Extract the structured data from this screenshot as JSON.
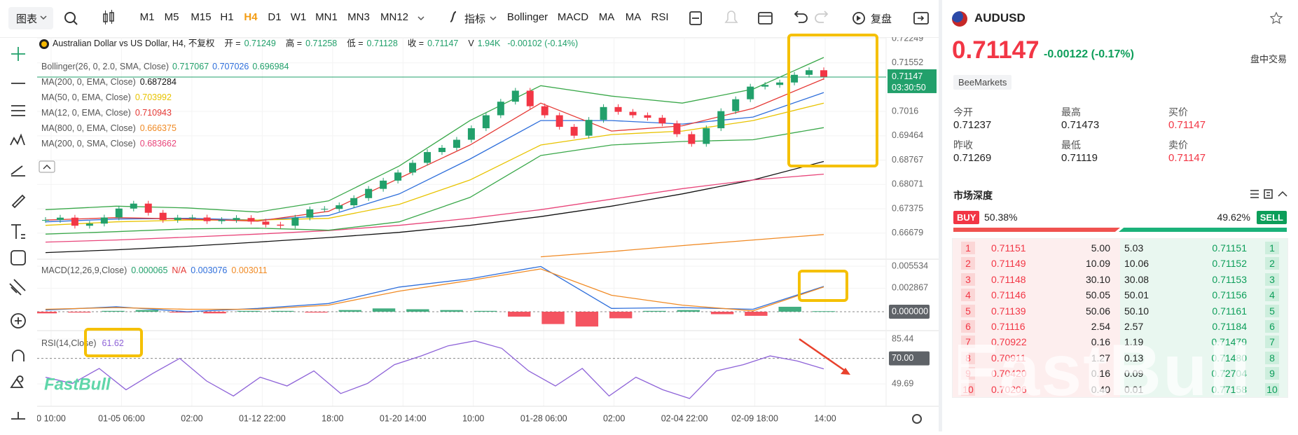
{
  "toolbar": {
    "chart_menu": "图表",
    "intervals": [
      "M1",
      "M5",
      "M15",
      "H1",
      "H4",
      "D1",
      "W1",
      "MN1",
      "MN3",
      "MN12"
    ],
    "active_interval": "H4",
    "indicators_button": "指标",
    "indicators": [
      "Bollinger",
      "MACD",
      "MA",
      "MA",
      "RSI"
    ],
    "replay": "复盘"
  },
  "legend": {
    "title": "Australian Dollar vs US Dollar, H4, 不复权",
    "ohlc": [
      {
        "label": "开 =",
        "value": "0.71249"
      },
      {
        "label": "高 =",
        "value": "0.71258"
      },
      {
        "label": "低 =",
        "value": "0.71128"
      },
      {
        "label": "收 =",
        "value": "0.71147"
      },
      {
        "label": "V",
        "value": "1.94K"
      }
    ],
    "change": "-0.00102 (-0.14%)"
  },
  "chart": {
    "type": "candlestick",
    "up_color": "#22a06b",
    "down_color": "#f23645",
    "closes": [
      0.67053,
      0.6712,
      0.66889,
      0.6695,
      0.67124,
      0.6738,
      0.67522,
      0.6726,
      0.67053,
      0.6712,
      0.67124,
      0.6702,
      0.67053,
      0.6711,
      0.67007,
      0.6692,
      0.66889,
      0.6712,
      0.67358,
      0.6737,
      0.67475,
      0.6768,
      0.67944,
      0.6818,
      0.68412,
      0.6869,
      0.68998,
      0.6912,
      0.6935,
      0.6968,
      0.70052,
      0.7044,
      0.70755,
      0.7031,
      0.70052,
      0.6972,
      0.69467,
      0.6992,
      0.70287,
      0.7015,
      0.70052,
      0.6998,
      0.69818,
      0.6951,
      0.69232,
      0.6968,
      0.7017,
      0.7051,
      0.70872,
      0.7092,
      0.7099,
      0.7121,
      0.71341,
      0.71147
    ],
    "ylim": [
      0.65931,
      0.72289
    ],
    "yticks": [
      0.72249,
      0.71552,
      0.7016,
      0.69464,
      0.68767,
      0.68071,
      0.67375,
      0.66679
    ],
    "current_price": 0.71147,
    "countdown": "03:30:50",
    "price_line_color": "#22a06b",
    "bollinger": {
      "label": "Bollinger(26, 0, 2.0, SMA, Close)",
      "bands": [
        {
          "value": "0.717067",
          "color": "#3aa84a",
          "values": [
            0.6735,
            0.6745,
            0.674,
            0.6728,
            0.676,
            0.686,
            0.699,
            0.709,
            0.706,
            0.704,
            0.708,
            0.71707
          ]
        },
        {
          "value": "0.707026",
          "color": "#2f6fdb",
          "values": [
            0.67,
            0.6708,
            0.671,
            0.6705,
            0.6718,
            0.678,
            0.688,
            0.699,
            0.699,
            0.698,
            0.7,
            0.70703
          ]
        },
        {
          "value": "0.696984",
          "color": "#3aa84a",
          "values": [
            0.6665,
            0.6672,
            0.668,
            0.6682,
            0.6676,
            0.67,
            0.677,
            0.689,
            0.692,
            0.693,
            0.6935,
            0.69698
          ]
        }
      ]
    },
    "moving_averages": [
      {
        "label": "MA(200, 0, EMA, Close)",
        "value": "0.687284",
        "color": "#111111",
        "values": [
          0.6612,
          0.662,
          0.663,
          0.6642,
          0.6655,
          0.667,
          0.669,
          0.6715,
          0.6745,
          0.678,
          0.682,
          0.68728
        ]
      },
      {
        "label": "MA(50, 0, EMA, Close)",
        "value": "0.703992",
        "color": "#e8c300",
        "values": [
          0.669,
          0.67,
          0.6705,
          0.6705,
          0.671,
          0.675,
          0.682,
          0.692,
          0.695,
          0.696,
          0.699,
          0.70399
        ]
      },
      {
        "label": "MA(12, 0, EMA, Close)",
        "value": "0.710943",
        "color": "#e53935",
        "values": [
          0.6705,
          0.6712,
          0.6708,
          0.6702,
          0.673,
          0.6825,
          0.692,
          0.704,
          0.696,
          0.6975,
          0.7025,
          0.71094
        ]
      },
      {
        "label": "MA(800, 0, EMA, Close)",
        "value": "0.666375",
        "color": "#f08a24",
        "values": [
          null,
          null,
          null,
          null,
          null,
          null,
          null,
          0.66,
          0.6615,
          0.6632,
          0.6648,
          0.66638
        ]
      },
      {
        "label": "MA(200, 0, SMA, Close)",
        "value": "0.683662",
        "color": "#e8457a",
        "values": [
          0.6642,
          0.6648,
          0.6656,
          0.6665,
          0.6675,
          0.669,
          0.671,
          0.6735,
          0.6765,
          0.6795,
          0.682,
          0.68366
        ]
      }
    ],
    "x_labels": [
      "0 10:00",
      "01-05 06:00",
      "02:00",
      "01-12 22:00",
      "18:00",
      "01-20 14:00",
      "10:00",
      "01-28 06:00",
      "02:00",
      "02-04 22:00",
      "02-09 18:00",
      "14:00"
    ]
  },
  "macd": {
    "label": "MACD(12,26,9,Close)",
    "readings": [
      {
        "value": "0.000065",
        "color": "#22a06b"
      },
      {
        "value": "N/A",
        "color": "#e53935"
      },
      {
        "value": "0.003076",
        "color": "#2f6fdb"
      },
      {
        "value": "0.003011",
        "color": "#f08a24"
      }
    ],
    "ylim": [
      -0.002299,
      0.006385
    ],
    "yticks": [
      0.005534,
      0.002867,
      {
        "value": 0,
        "label": "0.000000"
      }
    ],
    "up_color": "#22a06b",
    "down_color": "#f23645",
    "histogram": [
      -0.0002,
      -0.0001,
      0.0001,
      0.0002,
      -0.0001,
      -0.0002,
      0.0001,
      0.0001,
      -0.0001,
      0.0002,
      0.0004,
      0.0003,
      0.0002,
      0.0001,
      -0.0006,
      -0.0015,
      -0.0018,
      -0.0008,
      0.0001,
      0.0002,
      -0.0003,
      -0.0005,
      0.0006,
      6.5e-05
    ],
    "macd_line": {
      "color": "#2f6fdb",
      "values": [
        0.0002,
        0.0006,
        0.0,
        0.0004,
        0.001,
        0.003,
        0.004,
        0.0055,
        0.0004,
        0.0005,
        0.0003,
        0.003076
      ]
    },
    "signal_line": {
      "color": "#f08a24",
      "values": [
        0.0003,
        0.0005,
        0.0003,
        0.0003,
        0.0008,
        0.0025,
        0.0038,
        0.0052,
        0.002,
        0.0008,
        0.0001,
        0.003011
      ]
    }
  },
  "rsi": {
    "label": "RSI(14,Close)",
    "reading": "61.62",
    "color": "#8e63d8",
    "ylim": [
      31.81,
      92.14
    ],
    "yticks": [
      85.44,
      {
        "value": 70,
        "label": "70.00"
      },
      49.69
    ],
    "values": [
      55,
      50,
      62,
      45,
      58,
      70,
      52,
      40,
      55,
      48,
      60,
      42,
      50,
      65,
      72,
      80,
      84,
      78,
      60,
      48,
      62,
      40,
      55,
      45,
      38,
      60,
      65,
      72,
      68,
      61.62
    ]
  },
  "watermark": "FastBull",
  "quote": {
    "symbol": "AUDUSD",
    "price": "0.71147",
    "change": "-0.00122",
    "change_pct": "(-0.17%)",
    "session": "盘中交易",
    "broker": "BeeMarkets",
    "stats": [
      {
        "label": "今开",
        "value": "0.71237"
      },
      {
        "label": "最高",
        "value": "0.71473"
      },
      {
        "label": "买价",
        "value": "0.71147"
      },
      {
        "label": "昨收",
        "value": "0.71269"
      },
      {
        "label": "最低",
        "value": "0.71119"
      },
      {
        "label": "卖价",
        "value": "0.71147"
      }
    ]
  },
  "depth": {
    "title": "市场深度",
    "buy_tag": "BUY",
    "buy_pct": "50.38%",
    "sell_pct": "49.62%",
    "sell_tag": "SELL",
    "rows": [
      [
        "1",
        "0.71151",
        "5.00",
        "5.03",
        "0.71151",
        "1"
      ],
      [
        "2",
        "0.71149",
        "10.09",
        "10.06",
        "0.71152",
        "2"
      ],
      [
        "3",
        "0.71148",
        "30.10",
        "30.08",
        "0.71153",
        "3"
      ],
      [
        "4",
        "0.71146",
        "50.05",
        "50.01",
        "0.71156",
        "4"
      ],
      [
        "5",
        "0.71139",
        "50.06",
        "50.10",
        "0.71161",
        "5"
      ],
      [
        "6",
        "0.71116",
        "2.54",
        "2.57",
        "0.71184",
        "6"
      ],
      [
        "7",
        "0.70922",
        "0.16",
        "1.19",
        "0.71479",
        "7"
      ],
      [
        "8",
        "0.70911",
        "1.27",
        "0.13",
        "0.71480",
        "8"
      ],
      [
        "9",
        "0.70420",
        "0.16",
        "0.09",
        "0.72704",
        "9"
      ],
      [
        "10",
        "0.70206",
        "0.40",
        "0.01",
        "0.77158",
        "10"
      ]
    ]
  }
}
